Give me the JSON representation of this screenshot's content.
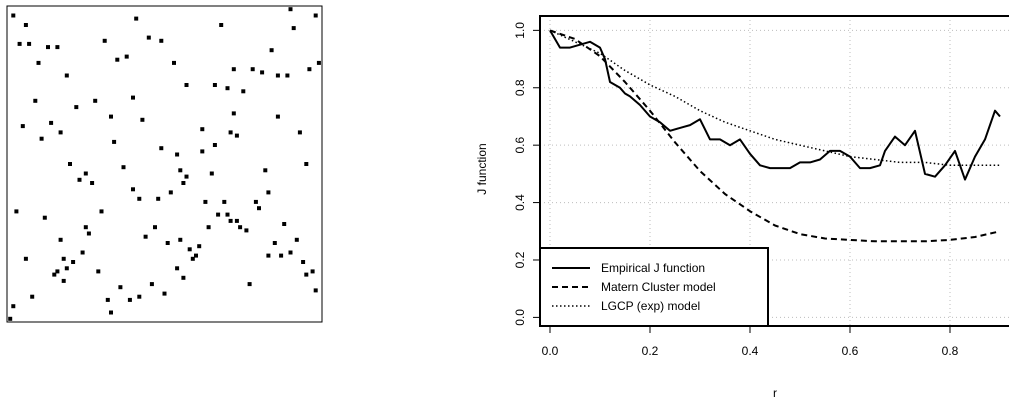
{
  "chart_data": [
    {
      "type": "scatter",
      "title": "",
      "xlim": [
        0,
        1
      ],
      "ylim": [
        0,
        1
      ],
      "axes_visible": false,
      "box": true,
      "marker": "filled-square",
      "color": "#000000",
      "x": [
        0.02,
        0.04,
        0.07,
        0.06,
        0.1,
        0.13,
        0.16,
        0.19,
        0.22,
        0.28,
        0.31,
        0.33,
        0.35,
        0.38,
        0.41,
        0.45,
        0.49,
        0.53,
        0.57,
        0.62,
        0.66,
        0.68,
        0.72,
        0.75,
        0.78,
        0.81,
        0.84,
        0.86,
        0.89,
        0.91,
        0.93,
        0.96,
        0.98,
        0.99,
        0.05,
        0.09,
        0.11,
        0.14,
        0.17,
        0.2,
        0.23,
        0.25,
        0.27,
        0.3,
        0.34,
        0.37,
        0.4,
        0.44,
        0.47,
        0.51,
        0.55,
        0.58,
        0.6,
        0.63,
        0.65,
        0.69,
        0.71,
        0.73,
        0.76,
        0.79,
        0.82,
        0.85,
        0.87,
        0.9,
        0.94,
        0.97,
        0.03,
        0.06,
        0.12,
        0.15,
        0.18,
        0.21,
        0.24,
        0.26,
        0.29,
        0.32,
        0.36,
        0.39,
        0.42,
        0.46,
        0.5,
        0.54,
        0.56,
        0.59,
        0.61,
        0.64,
        0.67,
        0.7,
        0.74,
        0.77,
        0.8,
        0.83,
        0.88,
        0.92,
        0.95,
        0.98,
        0.08,
        0.16,
        0.25,
        0.33,
        0.42,
        0.48,
        0.52,
        0.57,
        0.66,
        0.71,
        0.72,
        0.73,
        0.54,
        0.55,
        0.56,
        0.49,
        0.17,
        0.18,
        0.19,
        0.02,
        0.01,
        0.43,
        0.86,
        0.4,
        0.62,
        0.7,
        0.83,
        0.9,
        0.95
      ],
      "y": [
        0.97,
        0.88,
        0.88,
        0.94,
        0.82,
        0.87,
        0.87,
        0.78,
        0.68,
        0.7,
        0.89,
        0.65,
        0.83,
        0.84,
        0.96,
        0.9,
        0.89,
        0.82,
        0.75,
        0.61,
        0.75,
        0.94,
        0.8,
        0.73,
        0.8,
        0.79,
        0.86,
        0.78,
        0.78,
        0.93,
        0.6,
        0.8,
        0.97,
        0.82,
        0.62,
        0.7,
        0.58,
        0.63,
        0.6,
        0.5,
        0.45,
        0.47,
        0.44,
        0.35,
        0.57,
        0.49,
        0.42,
        0.27,
        0.3,
        0.25,
        0.26,
        0.23,
        0.21,
        0.38,
        0.47,
        0.38,
        0.32,
        0.32,
        0.29,
        0.38,
        0.48,
        0.25,
        0.21,
        0.22,
        0.19,
        0.16,
        0.35,
        0.2,
        0.33,
        0.15,
        0.13,
        0.19,
        0.22,
        0.28,
        0.16,
        0.07,
        0.11,
        0.07,
        0.08,
        0.12,
        0.09,
        0.17,
        0.14,
        0.2,
        0.24,
        0.3,
        0.34,
        0.34,
        0.3,
        0.12,
        0.36,
        0.41,
        0.31,
        0.26,
        0.15,
        0.1,
        0.08,
        0.16,
        0.3,
        0.03,
        0.39,
        0.39,
        0.41,
        0.46,
        0.56,
        0.6,
        0.66,
        0.59,
        0.53,
        0.48,
        0.44,
        0.55,
        0.26,
        0.2,
        0.17,
        0.05,
        0.01,
        0.64,
        0.65,
        0.71,
        0.54,
        0.74,
        0.21,
        0.99,
        0.5
      ]
    },
    {
      "type": "line",
      "title": "",
      "xlabel": "r",
      "ylabel": "J function",
      "xlim": [
        -0.02,
        0.92
      ],
      "ylim": [
        -0.03,
        1.05
      ],
      "xticks": [
        "0.0",
        "0.2",
        "0.4",
        "0.6",
        "0.8"
      ],
      "yticks": [
        "0.0",
        "0.2",
        "0.4",
        "0.6",
        "0.8",
        "1.0"
      ],
      "grid": true,
      "legend_position": "bottom-left",
      "series": [
        {
          "name": "Empirical J function",
          "style": "solid",
          "x": [
            0,
            0.02,
            0.04,
            0.06,
            0.08,
            0.1,
            0.11,
            0.12,
            0.14,
            0.15,
            0.16,
            0.18,
            0.2,
            0.22,
            0.24,
            0.26,
            0.28,
            0.3,
            0.32,
            0.34,
            0.36,
            0.38,
            0.4,
            0.42,
            0.44,
            0.46,
            0.48,
            0.5,
            0.52,
            0.54,
            0.56,
            0.58,
            0.6,
            0.62,
            0.64,
            0.66,
            0.67,
            0.69,
            0.71,
            0.73,
            0.75,
            0.77,
            0.79,
            0.81,
            0.83,
            0.85,
            0.87,
            0.89,
            0.9
          ],
          "y": [
            1.0,
            0.94,
            0.94,
            0.95,
            0.96,
            0.94,
            0.9,
            0.82,
            0.8,
            0.78,
            0.77,
            0.74,
            0.7,
            0.68,
            0.65,
            0.66,
            0.67,
            0.69,
            0.62,
            0.62,
            0.6,
            0.62,
            0.57,
            0.53,
            0.52,
            0.52,
            0.52,
            0.54,
            0.54,
            0.55,
            0.58,
            0.58,
            0.56,
            0.52,
            0.52,
            0.53,
            0.58,
            0.63,
            0.6,
            0.65,
            0.5,
            0.49,
            0.53,
            0.58,
            0.48,
            0.56,
            0.62,
            0.72,
            0.7
          ]
        },
        {
          "name": "Matern Cluster model",
          "style": "dashed",
          "x": [
            0,
            0.05,
            0.1,
            0.15,
            0.2,
            0.25,
            0.3,
            0.35,
            0.4,
            0.45,
            0.5,
            0.55,
            0.6,
            0.65,
            0.7,
            0.75,
            0.8,
            0.85,
            0.9
          ],
          "y": [
            1.0,
            0.97,
            0.91,
            0.82,
            0.72,
            0.61,
            0.51,
            0.43,
            0.37,
            0.32,
            0.29,
            0.275,
            0.27,
            0.265,
            0.265,
            0.265,
            0.27,
            0.28,
            0.3
          ]
        },
        {
          "name": "LGCP (exp) model",
          "style": "dotted",
          "x": [
            0,
            0.05,
            0.1,
            0.15,
            0.2,
            0.25,
            0.3,
            0.35,
            0.4,
            0.45,
            0.5,
            0.55,
            0.6,
            0.65,
            0.7,
            0.75,
            0.8,
            0.85,
            0.9
          ],
          "y": [
            1.0,
            0.96,
            0.92,
            0.86,
            0.81,
            0.77,
            0.72,
            0.68,
            0.65,
            0.62,
            0.6,
            0.58,
            0.56,
            0.55,
            0.54,
            0.54,
            0.53,
            0.53,
            0.53
          ]
        }
      ]
    }
  ]
}
